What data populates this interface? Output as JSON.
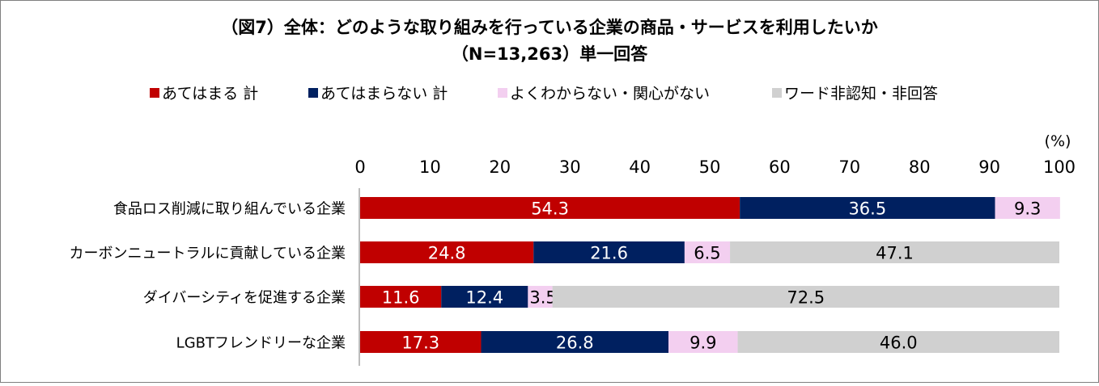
{
  "chart_data": {
    "type": "bar",
    "orientation": "horizontal",
    "stacked": true,
    "title": "（図7）全体：どのような取り組みを行っている企業の商品・サービスを利用したいか",
    "subtitle": "（N=13,263）単一回答",
    "unit_label": "(%)",
    "xlim": [
      0,
      100
    ],
    "x_ticks": [
      "0",
      "10",
      "20",
      "30",
      "40",
      "50",
      "60",
      "70",
      "80",
      "90",
      "100"
    ],
    "legend_position": "top",
    "categories": [
      "食品ロス削減に取り組んでいる企業",
      "カーボンニュートラルに貢献している企業",
      "ダイバーシティを促進する企業",
      "LGBTフレンドリーな企業"
    ],
    "series": [
      {
        "name": "あてはまる 計",
        "color": "#c00000",
        "label_color": "#ffffff",
        "values": [
          54.3,
          24.8,
          11.6,
          17.3
        ],
        "labels": [
          "54.3",
          "24.8",
          "11.6",
          "17.3"
        ]
      },
      {
        "name": "あてはまらない 計",
        "color": "#002060",
        "label_color": "#ffffff",
        "values": [
          36.5,
          21.6,
          12.4,
          26.8
        ],
        "labels": [
          "36.5",
          "21.6",
          "12.4",
          "26.8"
        ]
      },
      {
        "name": "よくわからない・関心がない",
        "color": "#f3cff0",
        "label_color": "#000000",
        "values": [
          9.3,
          6.5,
          3.5,
          9.9
        ],
        "labels": [
          "9.3",
          "6.5",
          "3.5",
          "9.9"
        ]
      },
      {
        "name": "ワード非認知・非回答",
        "color": "#d0d0d0",
        "label_color": "#000000",
        "values": [
          0,
          47.1,
          72.5,
          46.0
        ],
        "labels": [
          "",
          "47.1",
          "72.5",
          "46.0"
        ]
      }
    ]
  }
}
